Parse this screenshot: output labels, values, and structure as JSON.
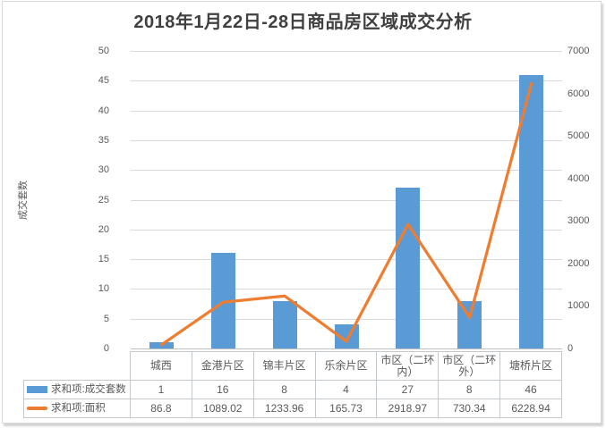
{
  "title": "2018年1月22日-28日商品房区域成交分析",
  "chart_data": {
    "type": "combo-bar-line",
    "title": "2018年1月22日-28日商品房区域成交分析",
    "categories": [
      "城西",
      "金港片区",
      "锦丰片区",
      "乐余片区",
      "市区（二环内）",
      "市区（二环外）",
      "塘桥片区"
    ],
    "series": [
      {
        "name": "求和项:成交套数",
        "type": "bar",
        "axis": "left",
        "color": "#5B9BD5",
        "values": [
          1,
          16,
          8,
          4,
          27,
          8,
          46
        ]
      },
      {
        "name": "求和项:面积",
        "type": "line",
        "axis": "right",
        "color": "#ED7D31",
        "values": [
          86.8,
          1089.02,
          1233.96,
          165.73,
          2918.97,
          730.34,
          6228.94
        ]
      }
    ],
    "ylabel_left": "成交套数",
    "axes": {
      "left": {
        "min": 0,
        "max": 50,
        "step": 5
      },
      "right": {
        "min": 0,
        "max": 7000,
        "step": 1000
      }
    },
    "grid": true,
    "legend_position": "left-of-data-table",
    "colors": {
      "grid": "#D9D9D9",
      "axis_line": "#BFBFBF",
      "table_border": "#C3C8CD",
      "text": "#595959",
      "title_text": "#404040"
    }
  },
  "data_table": {
    "columns": [
      "城西",
      "金港片区",
      "锦丰片区",
      "乐余片区",
      "市区（二环内）",
      "市区（二环外）",
      "塘桥片区"
    ],
    "rows": [
      {
        "label": "求和项:成交套数",
        "values": [
          "1",
          "16",
          "8",
          "4",
          "27",
          "8",
          "46"
        ]
      },
      {
        "label": "求和项:面积",
        "values": [
          "86.8",
          "1089.02",
          "1233.96",
          "165.73",
          "2918.97",
          "730.34",
          "6228.94"
        ]
      }
    ]
  }
}
